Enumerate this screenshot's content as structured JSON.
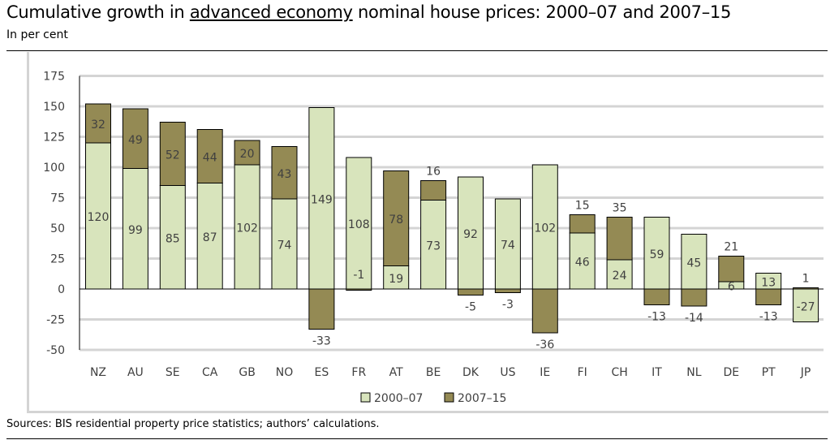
{
  "title_pre": "Cumulative growth in ",
  "title_link": "advanced economy",
  "title_post": " nominal house prices: 2000–07 and 2007–15",
  "subtitle": "In per cent",
  "sources": "Sources: BIS residential property price statistics; authors’ calculations.",
  "chart_data": {
    "type": "bar",
    "stacked": true,
    "categories": [
      "NZ",
      "AU",
      "SE",
      "CA",
      "GB",
      "NO",
      "ES",
      "FR",
      "AT",
      "BE",
      "DK",
      "US",
      "IE",
      "FI",
      "CH",
      "IT",
      "NL",
      "DE",
      "PT",
      "JP"
    ],
    "series": [
      {
        "name": "2000–07",
        "color": "#d8e4bc",
        "values": [
          120,
          99,
          85,
          87,
          102,
          74,
          149,
          108,
          19,
          73,
          92,
          74,
          102,
          46,
          24,
          59,
          45,
          6,
          13,
          -27
        ]
      },
      {
        "name": "2007–15",
        "color": "#948a54",
        "values": [
          32,
          49,
          52,
          44,
          20,
          43,
          -33,
          -1,
          78,
          16,
          -5,
          -3,
          -36,
          15,
          35,
          -13,
          -14,
          21,
          -13,
          1
        ]
      }
    ],
    "label_positions_2007_15": [
      "inside",
      "inside",
      "inside",
      "inside",
      "inside",
      "inside",
      "below",
      "up",
      "inside",
      "above",
      "below",
      "below",
      "below",
      "above",
      "above",
      "below",
      "below",
      "above",
      "below",
      "above"
    ],
    "ylim": [
      -50,
      175
    ],
    "yticks": [
      175,
      150,
      125,
      100,
      75,
      50,
      25,
      0,
      -25,
      -50
    ],
    "grid": true,
    "legend": "bottom"
  }
}
